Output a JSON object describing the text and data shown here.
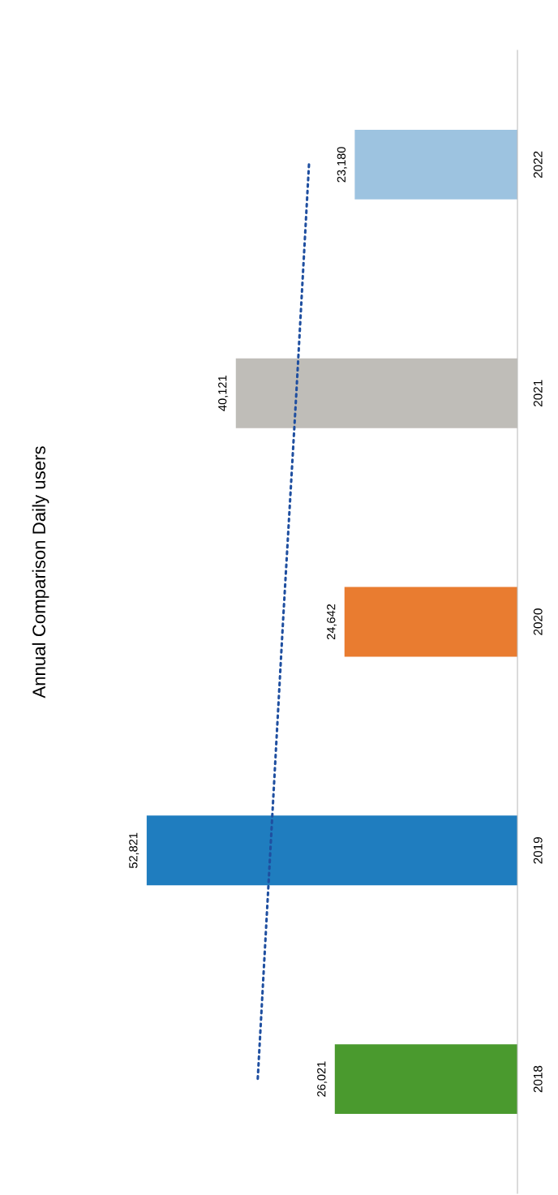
{
  "chart_data": {
    "type": "bar",
    "title": "Annual Comparison Daily users",
    "orientation": "horizontal",
    "categories": [
      "2022",
      "2021",
      "2020",
      "2019",
      "2018"
    ],
    "series": [
      {
        "colors": [
          "#9dc3e0",
          "#bfbdb8",
          "#e97c30",
          "#1f7dbf",
          "#4a9a2e"
        ],
        "values": [
          23180,
          40121,
          24642,
          52821,
          26021
        ],
        "value_labels": [
          "23,180",
          "40,121",
          "24,642",
          "52,821",
          "26,021"
        ]
      },
      {
        "type": "line",
        "color": "#1f4fa0",
        "line_style": "dotted",
        "values": [
          29700,
          31500,
          33400,
          35200,
          37000
        ]
      }
    ],
    "tick_labels": "y",
    "grid": false,
    "legend": false
  }
}
